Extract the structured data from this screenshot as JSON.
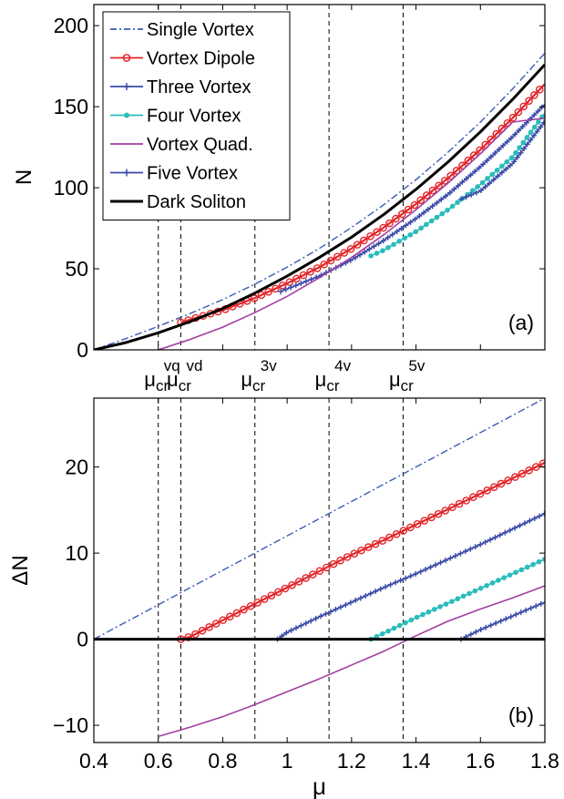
{
  "chart_data": [
    {
      "type": "line",
      "panel_label": "(a)",
      "ylabel": "N",
      "xlim": [
        0.4,
        1.8
      ],
      "ylim": [
        0,
        213
      ],
      "yticks": [
        "0",
        "50",
        "100",
        "150",
        "200"
      ],
      "legend_position": "top-left",
      "series": [
        {
          "name": "Single Vortex",
          "color": "#3a5cb5",
          "style": "dashdot",
          "marker": "none",
          "x": [
            0.4,
            0.5,
            0.6,
            0.7,
            0.8,
            0.9,
            1.0,
            1.1,
            1.2,
            1.3,
            1.4,
            1.5,
            1.6,
            1.7,
            1.8
          ],
          "y": [
            0,
            7,
            14.5,
            22.5,
            31,
            40.5,
            51,
            62.5,
            75.5,
            89.5,
            105,
            122,
            140.5,
            161,
            183
          ]
        },
        {
          "name": "Vortex Dipole",
          "color": "#e3262a",
          "style": "solid",
          "marker": "circle",
          "x": [
            0.67,
            0.8,
            0.9,
            1.0,
            1.1,
            1.2,
            1.3,
            1.4,
            1.5,
            1.6,
            1.7,
            1.8
          ],
          "y": [
            17,
            24.5,
            32,
            41,
            51,
            62.5,
            75.5,
            90,
            106,
            123.5,
            143,
            164
          ]
        },
        {
          "name": "Three Vortex",
          "color": "#3a4aa8",
          "style": "solid",
          "marker": "plus",
          "x": [
            0.98,
            1.1,
            1.2,
            1.3,
            1.4,
            1.5,
            1.6,
            1.7,
            1.8
          ],
          "y": [
            36,
            45.5,
            55.5,
            67.5,
            81,
            96,
            113,
            131.5,
            151.5
          ]
        },
        {
          "name": "Four Vortex",
          "color": "#2bbcbc",
          "style": "solid",
          "marker": "dot",
          "x": [
            1.26,
            1.3,
            1.4,
            1.5,
            1.6,
            1.7,
            1.8
          ],
          "y": [
            58,
            61.5,
            73,
            86.5,
            102,
            119,
            146
          ]
        },
        {
          "name": "Vortex Quad.",
          "color": "#a23ea2",
          "style": "solid",
          "marker": "none",
          "x": [
            0.6,
            0.7,
            0.8,
            0.9,
            1.0,
            1.1,
            1.2,
            1.3,
            1.4,
            1.5,
            1.6,
            1.7,
            1.8
          ],
          "y": [
            0,
            6.5,
            14,
            23,
            33,
            44.5,
            57,
            71,
            86.5,
            103,
            121,
            140.5,
            143
          ]
        },
        {
          "name": "Five Vortex",
          "color": "#3a4aa8",
          "style": "solid",
          "marker": "plus",
          "x": [
            1.54,
            1.6,
            1.7,
            1.8
          ],
          "y": [
            93,
            98,
            115,
            141
          ]
        },
        {
          "name": "Dark Soliton",
          "color": "#000000",
          "style": "thick",
          "marker": "none",
          "x": [
            0.4,
            0.5,
            0.6,
            0.7,
            0.8,
            0.9,
            1.0,
            1.1,
            1.2,
            1.3,
            1.4,
            1.5,
            1.6,
            1.7,
            1.8
          ],
          "y": [
            0,
            4.5,
            10.5,
            17.5,
            25.5,
            35,
            45.5,
            57,
            69.5,
            83.5,
            99,
            116,
            134.5,
            154.5,
            176
          ]
        }
      ],
      "critical_points": [
        {
          "x": 0.6,
          "base": "μ",
          "sub": "cr",
          "sup": "vq"
        },
        {
          "x": 0.67,
          "base": "μ",
          "sub": "cr",
          "sup": "vd"
        },
        {
          "x": 0.9,
          "base": "μ",
          "sub": "cr",
          "sup": "3v"
        },
        {
          "x": 1.13,
          "base": "μ",
          "sub": "cr",
          "sup": "4v"
        },
        {
          "x": 1.36,
          "base": "μ",
          "sub": "cr",
          "sup": "5v"
        }
      ]
    },
    {
      "type": "line",
      "panel_label": "(b)",
      "xlabel": "μ",
      "ylabel": "ΔN",
      "xlim": [
        0.4,
        1.8
      ],
      "ylim": [
        -12,
        28
      ],
      "xticks": [
        "0.4",
        "0.6",
        "0.8",
        "1",
        "1.2",
        "1.4",
        "1.6",
        "1.8"
      ],
      "yticks": [
        "−10",
        "0",
        "10",
        "20"
      ],
      "series": [
        {
          "name": "Single Vortex",
          "color": "#3a5cb5",
          "style": "dashdot",
          "marker": "none",
          "x": [
            0.4,
            1.8
          ],
          "y": [
            0,
            28
          ]
        },
        {
          "name": "Vortex Dipole",
          "color": "#e3262a",
          "style": "solid",
          "marker": "circle",
          "x": [
            0.67,
            0.7,
            0.8,
            0.9,
            1.0,
            1.1,
            1.2,
            1.3,
            1.4,
            1.5,
            1.6,
            1.7,
            1.8
          ],
          "y": [
            0,
            0.3,
            2.2,
            4.1,
            6,
            7.9,
            9.8,
            11.5,
            13.3,
            15.1,
            16.9,
            18.7,
            20.5
          ]
        },
        {
          "name": "Three Vortex",
          "color": "#3a4aa8",
          "style": "solid",
          "marker": "plus",
          "x": [
            0.97,
            1.0,
            1.1,
            1.2,
            1.3,
            1.4,
            1.5,
            1.6,
            1.7,
            1.8
          ],
          "y": [
            0,
            0.8,
            2.6,
            4.3,
            6,
            7.6,
            9.3,
            11,
            12.8,
            14.6
          ]
        },
        {
          "name": "Four Vortex",
          "color": "#2bbcbc",
          "style": "solid",
          "marker": "dot",
          "x": [
            1.26,
            1.3,
            1.4,
            1.5,
            1.6,
            1.7,
            1.8
          ],
          "y": [
            0,
            0.7,
            2.5,
            4.2,
            5.9,
            7.6,
            9.3
          ]
        },
        {
          "name": "Vortex Quad.",
          "color": "#a23ea2",
          "style": "solid",
          "marker": "none",
          "x": [
            0.6,
            0.7,
            0.8,
            0.9,
            1.0,
            1.1,
            1.2,
            1.3,
            1.4,
            1.5,
            1.6,
            1.7,
            1.8
          ],
          "y": [
            -11.3,
            -10.2,
            -9,
            -7.6,
            -6.1,
            -4.6,
            -3,
            -1.4,
            0.4,
            2.1,
            3.5,
            4.8,
            6.2
          ]
        },
        {
          "name": "Five Vortex",
          "color": "#3a4aa8",
          "style": "solid",
          "marker": "plus",
          "x": [
            1.54,
            1.6,
            1.7,
            1.8
          ],
          "y": [
            0,
            1.1,
            2.7,
            4.3
          ]
        },
        {
          "name": "Dark Soliton",
          "color": "#000000",
          "style": "thick",
          "marker": "none",
          "x": [
            0.4,
            1.8
          ],
          "y": [
            0,
            0
          ]
        }
      ],
      "critical_points": [
        0.6,
        0.67,
        0.9,
        1.13,
        1.36
      ]
    }
  ]
}
